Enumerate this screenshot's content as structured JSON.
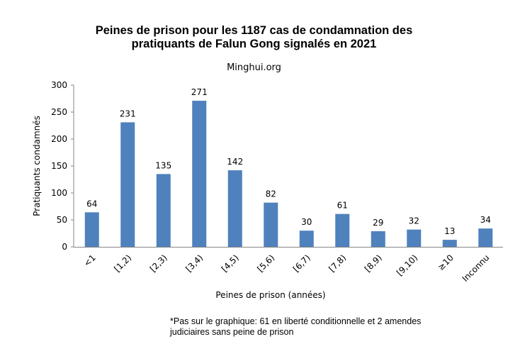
{
  "chart_data": {
    "type": "bar",
    "title_line1": "Peines de prison pour les 1187 cas de condamnation des",
    "title_line2": "pratiquants de Falun Gong signalés en 2021",
    "subtitle": "Minghui.org",
    "xlabel": "Peines de prison (années)",
    "ylabel": "Pratiquants condamnés",
    "categories": [
      "<1",
      "[1,2)",
      "[2,3)",
      "[3,4)",
      "[4,5)",
      "[5,6)",
      "[6,7)",
      "[7,8)",
      "[8,9)",
      "[9,10)",
      "≥10",
      "Inconnu"
    ],
    "values": [
      64,
      231,
      135,
      271,
      142,
      82,
      30,
      61,
      29,
      32,
      13,
      34
    ],
    "ylim": [
      0,
      300
    ],
    "yticks": [
      0,
      50,
      100,
      150,
      200,
      250,
      300
    ],
    "grid": false,
    "bar_color": "#4f81bd",
    "footnote_line1": "*Pas sur le graphique: 61 en liberté conditionnelle et 2 amendes",
    "footnote_line2": "judiciaires sans peine de prison"
  }
}
